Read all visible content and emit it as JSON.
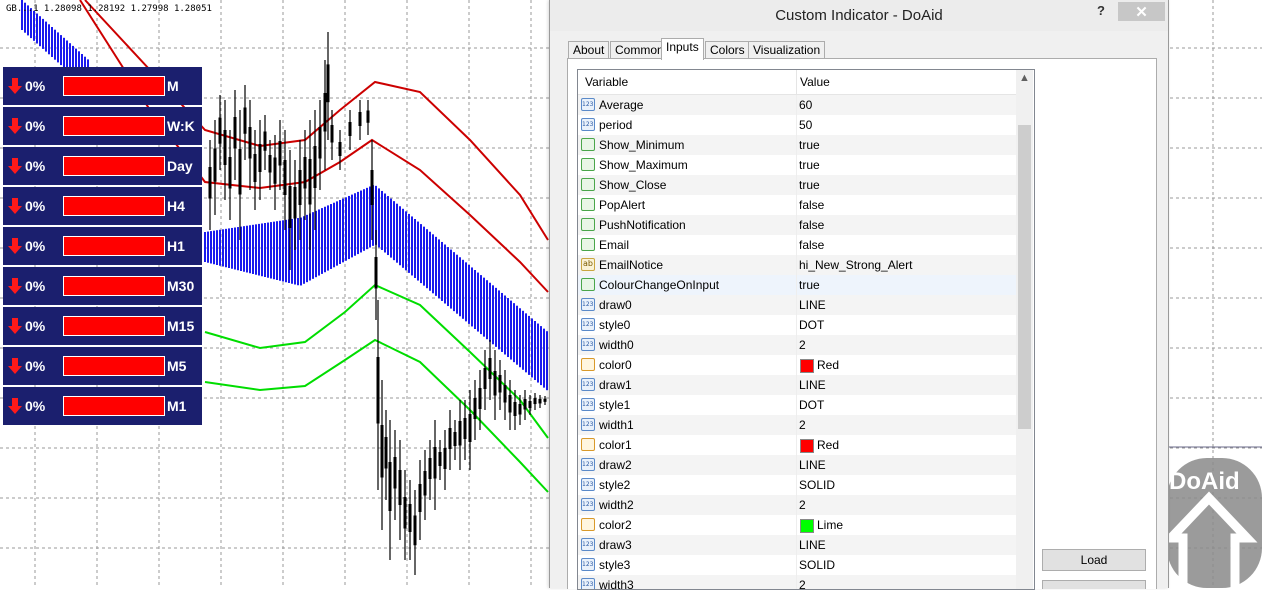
{
  "chart": {
    "quote": "GB...1  1.28098  1.28192  1.27998  1.28051",
    "timeframes": [
      {
        "pct": "0%",
        "tf": "M"
      },
      {
        "pct": "0%",
        "tf": "W:K"
      },
      {
        "pct": "0%",
        "tf": "Day"
      },
      {
        "pct": "0%",
        "tf": "H4"
      },
      {
        "pct": "0%",
        "tf": "H1"
      },
      {
        "pct": "0%",
        "tf": "M30"
      },
      {
        "pct": "0%",
        "tf": "M15"
      },
      {
        "pct": "0%",
        "tf": "M5"
      },
      {
        "pct": "0%",
        "tf": "M1"
      }
    ],
    "watermark": "DoAid",
    "colors": {
      "band_upper": "#cc0000",
      "band_lower": "#00dd00",
      "histogram": "#1a1aee",
      "panel": "#1b1f6e"
    }
  },
  "dialog": {
    "title": "Custom Indicator - DoAid",
    "help": "?",
    "close": "✕",
    "tabs": [
      "About",
      "Common",
      "Inputs",
      "Colors",
      "Visualization"
    ],
    "active_tab": "Inputs",
    "columns": {
      "variable": "Variable",
      "value": "Value"
    },
    "rows": [
      {
        "icon": "num",
        "name": "Average",
        "value": "60"
      },
      {
        "icon": "num",
        "name": "period",
        "value": "50"
      },
      {
        "icon": "bool",
        "name": "Show_Minimum",
        "value": "true"
      },
      {
        "icon": "bool",
        "name": "Show_Maximum",
        "value": "true"
      },
      {
        "icon": "bool",
        "name": "Show_Close",
        "value": "true"
      },
      {
        "icon": "bool",
        "name": "PopAlert",
        "value": "false"
      },
      {
        "icon": "bool",
        "name": "PushNotification",
        "value": "false"
      },
      {
        "icon": "bool",
        "name": "Email",
        "value": "false"
      },
      {
        "icon": "str",
        "name": "EmailNotice",
        "value": "hi_New_Strong_Alert"
      },
      {
        "icon": "bool",
        "name": "ColourChangeOnInput",
        "value": "true",
        "selected": true
      },
      {
        "icon": "num",
        "name": "draw0",
        "value": "LINE"
      },
      {
        "icon": "num",
        "name": "style0",
        "value": "DOT"
      },
      {
        "icon": "num",
        "name": "width0",
        "value": "2"
      },
      {
        "icon": "color",
        "name": "color0",
        "value": "Red",
        "swatch": "#ff0000"
      },
      {
        "icon": "num",
        "name": "draw1",
        "value": "LINE"
      },
      {
        "icon": "num",
        "name": "style1",
        "value": "DOT"
      },
      {
        "icon": "num",
        "name": "width1",
        "value": "2"
      },
      {
        "icon": "color",
        "name": "color1",
        "value": "Red",
        "swatch": "#ff0000"
      },
      {
        "icon": "num",
        "name": "draw2",
        "value": "LINE"
      },
      {
        "icon": "num",
        "name": "style2",
        "value": "SOLID"
      },
      {
        "icon": "num",
        "name": "width2",
        "value": "2"
      },
      {
        "icon": "color",
        "name": "color2",
        "value": "Lime",
        "swatch": "#00ff00"
      },
      {
        "icon": "num",
        "name": "draw3",
        "value": "LINE"
      },
      {
        "icon": "num",
        "name": "style3",
        "value": "SOLID"
      },
      {
        "icon": "num",
        "name": "width3",
        "value": "2"
      }
    ],
    "buttons": {
      "load": "Load"
    }
  }
}
